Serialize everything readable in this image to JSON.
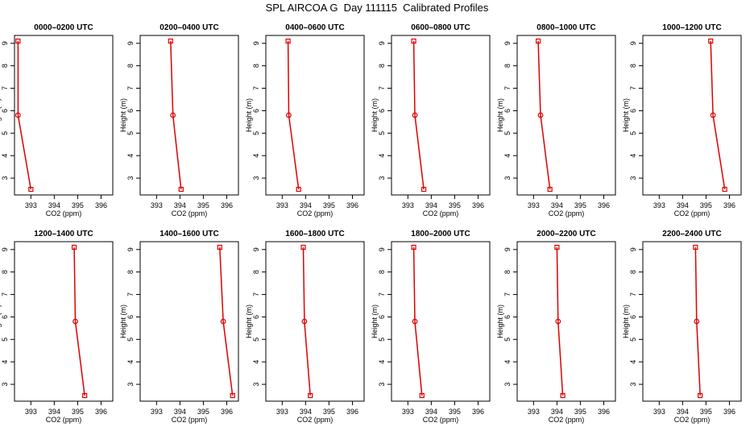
{
  "title": "SPL AIRCOA G  Day 111115  Calibrated Profiles",
  "colors": {
    "line": "#dd0000",
    "axis": "#000000"
  },
  "chart_data": {
    "type": "line",
    "xlabel": "CO2 (ppm)",
    "ylabel": "Height (m)",
    "xlim": [
      392.3,
      396.5
    ],
    "ylim": [
      2.25,
      9.35
    ],
    "xticks": [
      393,
      394,
      395,
      396
    ],
    "yticks": [
      3,
      4,
      5,
      6,
      7,
      8,
      9
    ],
    "grid": false,
    "heights": [
      9.1,
      5.8,
      2.5
    ],
    "panels": [
      {
        "title": "0000–0200 UTC",
        "co2": [
          392.45,
          392.45,
          393.0
        ]
      },
      {
        "title": "0200–0400 UTC",
        "co2": [
          393.6,
          393.7,
          394.05
        ]
      },
      {
        "title": "0400–0600 UTC",
        "co2": [
          393.25,
          393.28,
          393.7
        ]
      },
      {
        "title": "0600–0800 UTC",
        "co2": [
          393.25,
          393.3,
          393.68
        ]
      },
      {
        "title": "0800–1000 UTC",
        "co2": [
          393.2,
          393.3,
          393.7
        ]
      },
      {
        "title": "1000–1200 UTC",
        "co2": [
          395.2,
          395.3,
          395.8
        ]
      },
      {
        "title": "1200–1400 UTC",
        "co2": [
          394.85,
          394.9,
          395.3
        ]
      },
      {
        "title": "1400–1600 UTC",
        "co2": [
          395.7,
          395.85,
          396.25
        ]
      },
      {
        "title": "1600–1800 UTC",
        "co2": [
          393.9,
          393.95,
          394.2
        ]
      },
      {
        "title": "1800–2000 UTC",
        "co2": [
          393.25,
          393.3,
          393.6
        ]
      },
      {
        "title": "2000–2200 UTC",
        "co2": [
          394.0,
          394.05,
          394.25
        ]
      },
      {
        "title": "2200–2400 UTC",
        "co2": [
          394.55,
          394.6,
          394.75
        ]
      }
    ]
  }
}
